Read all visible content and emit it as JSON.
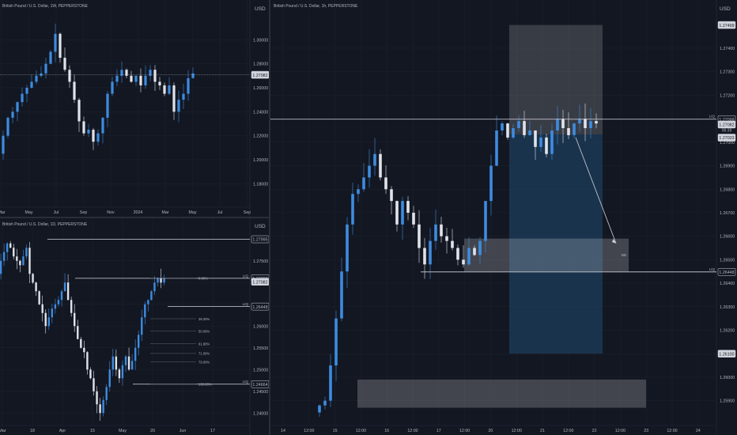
{
  "colors": {
    "background": "#131722",
    "grid": "#1e222d",
    "axis_text": "#b2b5be",
    "up_candle": "#3d8ce0",
    "down_candle": "#e1e3ea",
    "line": "#d1d4dc",
    "price_tag_bg": "#d1d4dc",
    "price_tag_text": "#131722",
    "zone": "#ffffff",
    "short_target": "#1d3d5c"
  },
  "panes": {
    "weekly": {
      "title": "British Pound / U.S. Dollar, 1W, PEPPERSTONE",
      "currency": "USD",
      "chart_data": {
        "type": "candlestick",
        "timeframe": "1W",
        "y_ticks": [
          1.18,
          1.2,
          1.22,
          1.24,
          1.26,
          1.28,
          1.3
        ],
        "y_tick_labels": [
          "1.18000",
          "1.20000",
          "1.22000",
          "1.24000",
          "1.26000",
          "1.28000",
          "1.30000"
        ],
        "x_labels": [
          "Mar",
          "May",
          "Jul",
          "Sep",
          "Nov",
          "2024",
          "Mar",
          "May",
          "Jul",
          "Sep"
        ],
        "ylim": [
          1.165,
          1.32
        ],
        "current_price": 1.27082,
        "current_price_label": "1.27082",
        "close_path": [
          1.205,
          1.22,
          1.235,
          1.24,
          1.248,
          1.255,
          1.26,
          1.265,
          1.27,
          1.272,
          1.28,
          1.29,
          1.305,
          1.285,
          1.275,
          1.265,
          1.25,
          1.232,
          1.222,
          1.225,
          1.215,
          1.222,
          1.235,
          1.255,
          1.265,
          1.27,
          1.275,
          1.27,
          1.265,
          1.27,
          1.262,
          1.27,
          1.275,
          1.265,
          1.262,
          1.255,
          1.262,
          1.24,
          1.25,
          1.255,
          1.268,
          1.272
        ]
      }
    },
    "daily": {
      "title": "British Pound / U.S. Dollar, 1D, PEPPERSTONE",
      "currency": "USD",
      "chart_data": {
        "type": "candlestick",
        "timeframe": "1D",
        "y_ticks": [
          1.24,
          1.245,
          1.25,
          1.255,
          1.26,
          1.265,
          1.27,
          1.275
        ],
        "y_tick_labels": [
          "1.24000",
          "1.24500",
          "1.25000",
          "1.25500",
          "1.26000",
          "1.26500",
          "1.27000",
          "1.27500"
        ],
        "x_labels": [
          "Mar",
          "18",
          "Apr",
          "15",
          "May",
          "20",
          "Jun",
          "17"
        ],
        "ylim": [
          1.2375,
          1.2815
        ],
        "current_price_label": "1.27082",
        "levels": [
          {
            "price": 1.27995,
            "label": "1.27995"
          },
          {
            "price": 1.27098,
            "label": "1.27098",
            "tag": "LIQ"
          },
          {
            "price": 1.26448,
            "label": "1.26448",
            "tag": "LIQ"
          },
          {
            "price": 1.24664,
            "label": "1.24664",
            "tag": "LIQ"
          }
        ],
        "fibonacci": {
          "high": 1.27098,
          "low": 1.24664,
          "levels": [
            {
              "ratio": 0.0,
              "label": "0.00%"
            },
            {
              "ratio": 0.382,
              "label": "38.20%"
            },
            {
              "ratio": 0.5,
              "label": "50.00%"
            },
            {
              "ratio": 0.618,
              "label": "61.80%"
            },
            {
              "ratio": 0.71,
              "label": "71.00%"
            },
            {
              "ratio": 0.79,
              "label": "79.00%"
            },
            {
              "ratio": 1.0,
              "label": "100.00%"
            }
          ]
        },
        "close_path": [
          1.272,
          1.275,
          1.277,
          1.279,
          1.278,
          1.276,
          1.275,
          1.274,
          1.276,
          1.278,
          1.272,
          1.27,
          1.268,
          1.265,
          1.263,
          1.26,
          1.262,
          1.264,
          1.265,
          1.266,
          1.268,
          1.27,
          1.266,
          1.263,
          1.26,
          1.257,
          1.255,
          1.254,
          1.25,
          1.248,
          1.245,
          1.242,
          1.24,
          1.243,
          1.246,
          1.25,
          1.253,
          1.25,
          1.248,
          1.251,
          1.253,
          1.25,
          1.252,
          1.255,
          1.258,
          1.262,
          1.265,
          1.266,
          1.268,
          1.27,
          1.271,
          1.27,
          1.271
        ]
      }
    },
    "hourly": {
      "title": "British Pound / U.S. Dollar, 1h, PEPPERSTONE",
      "currency": "USD",
      "chart_data": {
        "type": "candlestick",
        "timeframe": "1h",
        "y_ticks": [
          1.259,
          1.26,
          1.261,
          1.262,
          1.263,
          1.264,
          1.265,
          1.266,
          1.267,
          1.268,
          1.269,
          1.27,
          1.271,
          1.272,
          1.273,
          1.274
        ],
        "y_tick_labels": [
          "1.25900",
          "1.26000",
          "1.26100",
          "1.26200",
          "1.26300",
          "1.26400",
          "1.26500",
          "1.26600",
          "1.26700",
          "1.26800",
          "1.26900",
          "1.27000",
          "1.27100",
          "1.27200",
          "1.27300",
          "1.27400"
        ],
        "x_labels": [
          "14",
          "12:00",
          "15",
          "12:00",
          "16",
          "12:00",
          "17",
          "12:00",
          "20",
          "12:00",
          "21",
          "12:00",
          "22",
          "12:00",
          "23",
          "12:00",
          "24"
        ],
        "ylim": [
          1.25855,
          1.27538
        ],
        "levels": [
          {
            "price": 1.27098,
            "label": "1.27098",
            "tag": "LIQ"
          },
          {
            "price": 1.26448,
            "label": "1.26448",
            "tag": "LIQ"
          }
        ],
        "current_price_label": "1.27082",
        "countdown": "06:39",
        "entry_label": "1.27033",
        "stop_label": "1.27499",
        "target_label": "1.26100",
        "zone_tag": "BB",
        "short_position": {
          "entry": 1.27033,
          "stop": 1.27499,
          "target": 1.261
        },
        "close_path": [
          1.2585,
          1.2588,
          1.259,
          1.2605,
          1.2625,
          1.2645,
          1.2665,
          1.2678,
          1.268,
          1.2685,
          1.269,
          1.2695,
          1.2685,
          1.268,
          1.2675,
          1.2665,
          1.2675,
          1.267,
          1.2665,
          1.2655,
          1.2648,
          1.2658,
          1.2665,
          1.266,
          1.2658,
          1.2655,
          1.265,
          1.2648,
          1.2655,
          1.2652,
          1.2658,
          1.2675,
          1.269,
          1.2705,
          1.2708,
          1.2702,
          1.2706,
          1.2709,
          1.2703,
          1.2705,
          1.2698,
          1.2702,
          1.2695,
          1.2705,
          1.271,
          1.2706,
          1.2703,
          1.2708,
          1.271,
          1.2706,
          1.2709,
          1.2708
        ]
      }
    }
  }
}
